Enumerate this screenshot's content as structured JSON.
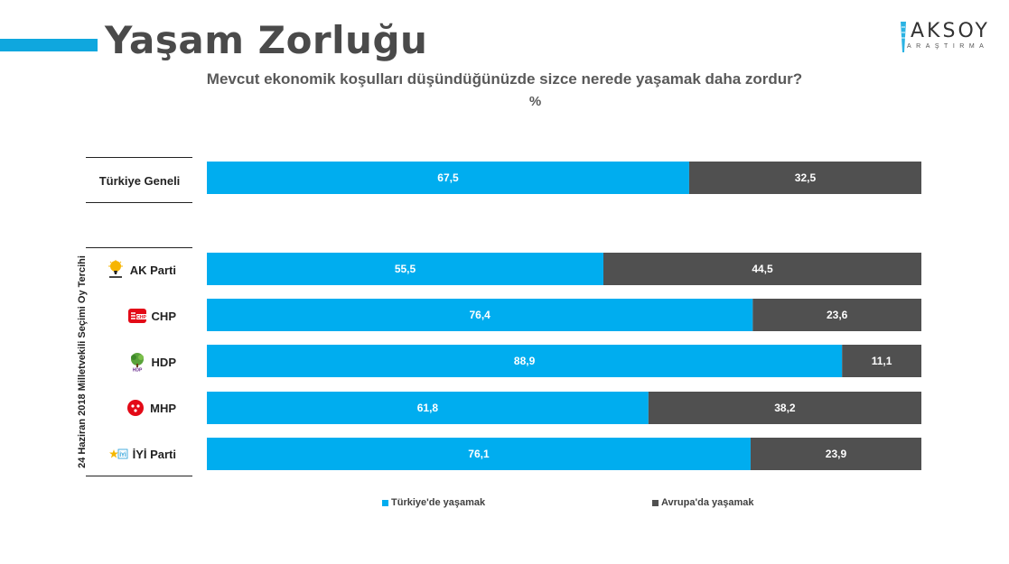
{
  "header": {
    "title": "Yaşam Zorluğu",
    "logo_text": "AKSOY",
    "logo_sub": "ARAŞTIRMA"
  },
  "question": "Mevcut ekonomik koşulları düşündüğünüzde sizce nerede yaşamak daha zordur?",
  "unit": "%",
  "side_label": "24 Haziran 2018 Milletvekili Seçimi Oy Tercihi",
  "colors": {
    "turkey": "#00adef",
    "europe": "#505050",
    "accent": "#0fa7de"
  },
  "chart_data": {
    "type": "bar",
    "orientation": "horizontal",
    "stacked": true,
    "categories": [
      "Türkiye Geneli",
      "AK Parti",
      "CHP",
      "HDP",
      "MHP",
      "İYİ Parti"
    ],
    "series": [
      {
        "name": "Türkiye'de yaşamak",
        "values": [
          67.5,
          55.5,
          76.4,
          88.9,
          61.8,
          76.1
        ]
      },
      {
        "name": "Avrupa'da yaşamak",
        "values": [
          32.5,
          44.5,
          23.6,
          11.1,
          38.2,
          23.9
        ]
      }
    ],
    "value_labels": {
      "turkey": [
        "67,5",
        "55,5",
        "76,4",
        "88,9",
        "61,8",
        "76,1"
      ],
      "europe": [
        "32,5",
        "44,5",
        "23,6",
        "11,1",
        "38,2",
        "23,9"
      ]
    },
    "xlim": [
      0,
      100
    ],
    "legend_position": "bottom"
  },
  "parties": [
    {
      "label": "AK Parti",
      "icon": "akp-logo-icon"
    },
    {
      "label": "CHP",
      "icon": "chp-logo-icon"
    },
    {
      "label": "HDP",
      "icon": "hdp-logo-icon"
    },
    {
      "label": "MHP",
      "icon": "mhp-logo-icon"
    },
    {
      "label": "İYİ Parti",
      "icon": "iyi-logo-icon"
    }
  ],
  "legend": {
    "turkey": "Türkiye'de yaşamak",
    "europe": "Avrupa'da yaşamak"
  }
}
